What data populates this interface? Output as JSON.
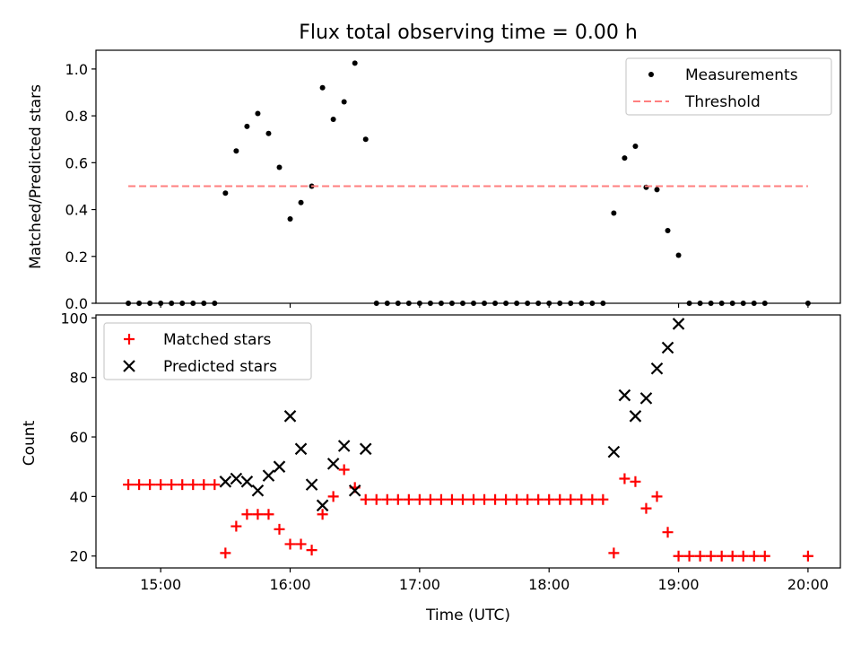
{
  "chart_data": [
    {
      "type": "scatter",
      "title": "Flux total observing time = 0.00 h",
      "xlabel": "",
      "ylabel": "Matched/Predicted stars",
      "xlim": [
        "14:30",
        "20:15"
      ],
      "ylim": [
        0,
        1.08
      ],
      "yticks": [
        0.0,
        0.2,
        0.4,
        0.6,
        0.8,
        1.0
      ],
      "ytick_labels": [
        "0.0",
        "0.2",
        "0.4",
        "0.6",
        "0.8",
        "1.0"
      ],
      "legend": {
        "position": "top-right",
        "entries": [
          "Measurements",
          "Threshold"
        ]
      },
      "series": [
        {
          "name": "Measurements",
          "kind": "scatter",
          "marker": "dot",
          "color": "#000000",
          "points": [
            [
              "14:45",
              0
            ],
            [
              "14:50",
              0
            ],
            [
              "14:55",
              0
            ],
            [
              "15:00",
              0
            ],
            [
              "15:05",
              0
            ],
            [
              "15:10",
              0
            ],
            [
              "15:15",
              0
            ],
            [
              "15:20",
              0
            ],
            [
              "15:25",
              0
            ],
            [
              "15:30",
              0.47
            ],
            [
              "15:35",
              0.65
            ],
            [
              "15:40",
              0.755
            ],
            [
              "15:45",
              0.81
            ],
            [
              "15:50",
              0.725
            ],
            [
              "15:55",
              0.58
            ],
            [
              "16:00",
              0.36
            ],
            [
              "16:05",
              0.43
            ],
            [
              "16:10",
              0.5
            ],
            [
              "16:15",
              0.92
            ],
            [
              "16:20",
              0.785
            ],
            [
              "16:25",
              0.86
            ],
            [
              "16:30",
              1.025
            ],
            [
              "16:35",
              0.7
            ],
            [
              "16:40",
              0
            ],
            [
              "16:45",
              0
            ],
            [
              "16:50",
              0
            ],
            [
              "16:55",
              0
            ],
            [
              "17:00",
              0
            ],
            [
              "17:05",
              0
            ],
            [
              "17:10",
              0
            ],
            [
              "17:15",
              0
            ],
            [
              "17:20",
              0
            ],
            [
              "17:25",
              0
            ],
            [
              "17:30",
              0
            ],
            [
              "17:35",
              0
            ],
            [
              "17:40",
              0
            ],
            [
              "17:45",
              0
            ],
            [
              "17:50",
              0
            ],
            [
              "17:55",
              0
            ],
            [
              "18:00",
              0
            ],
            [
              "18:05",
              0
            ],
            [
              "18:10",
              0
            ],
            [
              "18:15",
              0
            ],
            [
              "18:20",
              0
            ],
            [
              "18:25",
              0
            ],
            [
              "18:30",
              0.385
            ],
            [
              "18:35",
              0.62
            ],
            [
              "18:40",
              0.67
            ],
            [
              "18:45",
              0.495
            ],
            [
              "18:50",
              0.485
            ],
            [
              "18:55",
              0.31
            ],
            [
              "19:00",
              0.205
            ],
            [
              "19:05",
              0
            ],
            [
              "19:10",
              0
            ],
            [
              "19:15",
              0
            ],
            [
              "19:20",
              0
            ],
            [
              "19:25",
              0
            ],
            [
              "19:30",
              0
            ],
            [
              "19:35",
              0
            ],
            [
              "19:40",
              0
            ],
            [
              "20:00",
              0
            ]
          ]
        },
        {
          "name": "Threshold",
          "kind": "line",
          "style": "dashed",
          "color": "#ff7f7f",
          "points": [
            [
              "14:45",
              0.5
            ],
            [
              "20:00",
              0.5
            ]
          ]
        }
      ]
    },
    {
      "type": "scatter",
      "title": "",
      "xlabel": "Time (UTC)",
      "ylabel": "Count",
      "xlim": [
        "14:30",
        "20:15"
      ],
      "ylim": [
        16,
        101
      ],
      "xticks": [
        "15:00",
        "16:00",
        "17:00",
        "18:00",
        "19:00",
        "20:00"
      ],
      "yticks": [
        20,
        40,
        60,
        80,
        100
      ],
      "ytick_labels": [
        "20",
        "40",
        "60",
        "80",
        "100"
      ],
      "legend": {
        "position": "top-left",
        "entries": [
          "Matched stars",
          "Predicted stars"
        ]
      },
      "series": [
        {
          "name": "Matched stars",
          "kind": "scatter",
          "marker": "plus",
          "color": "#ff0000",
          "points": [
            [
              "14:45",
              44
            ],
            [
              "14:50",
              44
            ],
            [
              "14:55",
              44
            ],
            [
              "15:00",
              44
            ],
            [
              "15:05",
              44
            ],
            [
              "15:10",
              44
            ],
            [
              "15:15",
              44
            ],
            [
              "15:20",
              44
            ],
            [
              "15:25",
              44
            ],
            [
              "15:30",
              21
            ],
            [
              "15:35",
              30
            ],
            [
              "15:40",
              34
            ],
            [
              "15:45",
              34
            ],
            [
              "15:50",
              34
            ],
            [
              "15:55",
              29
            ],
            [
              "16:00",
              24
            ],
            [
              "16:05",
              24
            ],
            [
              "16:10",
              22
            ],
            [
              "16:15",
              34
            ],
            [
              "16:20",
              40
            ],
            [
              "16:25",
              49
            ],
            [
              "16:30",
              43
            ],
            [
              "16:35",
              39
            ],
            [
              "16:40",
              39
            ],
            [
              "16:45",
              39
            ],
            [
              "16:50",
              39
            ],
            [
              "16:55",
              39
            ],
            [
              "17:00",
              39
            ],
            [
              "17:05",
              39
            ],
            [
              "17:10",
              39
            ],
            [
              "17:15",
              39
            ],
            [
              "17:20",
              39
            ],
            [
              "17:25",
              39
            ],
            [
              "17:30",
              39
            ],
            [
              "17:35",
              39
            ],
            [
              "17:40",
              39
            ],
            [
              "17:45",
              39
            ],
            [
              "17:50",
              39
            ],
            [
              "17:55",
              39
            ],
            [
              "18:00",
              39
            ],
            [
              "18:05",
              39
            ],
            [
              "18:10",
              39
            ],
            [
              "18:15",
              39
            ],
            [
              "18:20",
              39
            ],
            [
              "18:25",
              39
            ],
            [
              "18:30",
              21
            ],
            [
              "18:35",
              46
            ],
            [
              "18:40",
              45
            ],
            [
              "18:45",
              36
            ],
            [
              "18:50",
              40
            ],
            [
              "18:55",
              28
            ],
            [
              "19:00",
              20
            ],
            [
              "19:05",
              20
            ],
            [
              "19:10",
              20
            ],
            [
              "19:15",
              20
            ],
            [
              "19:20",
              20
            ],
            [
              "19:25",
              20
            ],
            [
              "19:30",
              20
            ],
            [
              "19:35",
              20
            ],
            [
              "19:40",
              20
            ],
            [
              "20:00",
              20
            ]
          ]
        },
        {
          "name": "Predicted stars",
          "kind": "scatter",
          "marker": "x",
          "color": "#000000",
          "points": [
            [
              "15:30",
              45
            ],
            [
              "15:35",
              46
            ],
            [
              "15:40",
              45
            ],
            [
              "15:45",
              42
            ],
            [
              "15:50",
              47
            ],
            [
              "15:55",
              50
            ],
            [
              "16:00",
              67
            ],
            [
              "16:05",
              56
            ],
            [
              "16:10",
              44
            ],
            [
              "16:15",
              37
            ],
            [
              "16:20",
              51
            ],
            [
              "16:25",
              57
            ],
            [
              "16:30",
              42
            ],
            [
              "16:35",
              56
            ],
            [
              "18:30",
              55
            ],
            [
              "18:35",
              74
            ],
            [
              "18:40",
              67
            ],
            [
              "18:45",
              73
            ],
            [
              "18:50",
              83
            ],
            [
              "18:55",
              90
            ],
            [
              "19:00",
              98
            ]
          ]
        }
      ]
    }
  ]
}
